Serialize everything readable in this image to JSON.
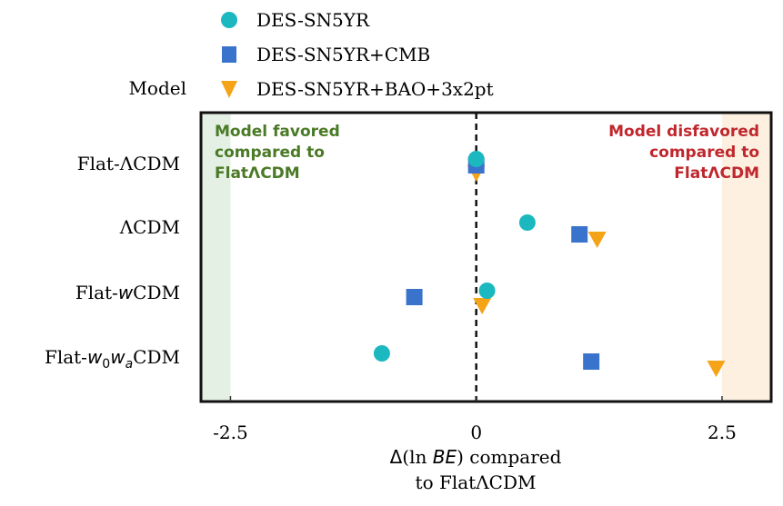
{
  "chart_data": {
    "type": "scatter",
    "title": "",
    "ylabel": "Model",
    "xlabel_line1": "Δ(ln BE) compared",
    "xlabel_line2": "to FlatΛCDM",
    "xlim": [
      -2.8,
      3.0
    ],
    "xticks": [
      {
        "value": -2.5,
        "label": "-2.5"
      },
      {
        "value": 0,
        "label": "0"
      },
      {
        "value": 2.5,
        "label": "2.5"
      }
    ],
    "reference_line": {
      "value": 0,
      "style": "dashed"
    },
    "categories": [
      "Flat-ΛCDM",
      "ΛCDM",
      "Flat-wCDM",
      "Flat-w0waCDM"
    ],
    "category_labels": [
      {
        "prefix": "Flat-",
        "main": "ΛCDM"
      },
      {
        "prefix": "",
        "main": "ΛCDM"
      },
      {
        "prefix": "Flat-",
        "italic": "w",
        "main": "CDM"
      },
      {
        "prefix": "Flat-",
        "italic": "w",
        "sub1": "0",
        "italic2": "w",
        "sub2": "a",
        "main": "CDM"
      }
    ],
    "series": [
      {
        "name": "DES-SN5YR",
        "marker": "circle",
        "color": "#1bb8bf",
        "values": [
          0.0,
          0.52,
          0.11,
          -0.96
        ]
      },
      {
        "name": "DES-SN5YR+CMB",
        "marker": "square",
        "color": "#3a73cc",
        "values": [
          0.0,
          1.05,
          -0.63,
          1.17
        ]
      },
      {
        "name": "DES-SN5YR+BAO+3x2pt",
        "marker": "triangle-down",
        "color": "#f5a317",
        "values": [
          0.0,
          1.23,
          0.06,
          2.44
        ]
      }
    ],
    "regions": [
      {
        "name": "favored",
        "range": [
          -2.8,
          -2.5
        ],
        "color": "#e3f0e3",
        "label": [
          "Model favored",
          "compared to",
          "FlatΛCDM"
        ],
        "label_color": "#4a7a25"
      },
      {
        "name": "disfavored",
        "range": [
          2.5,
          3.0
        ],
        "color": "#fdf0e0",
        "label": [
          "Model disfavored",
          "compared to",
          "FlatΛCDM"
        ],
        "label_color": "#c0272d"
      }
    ],
    "legend_position": "top"
  }
}
